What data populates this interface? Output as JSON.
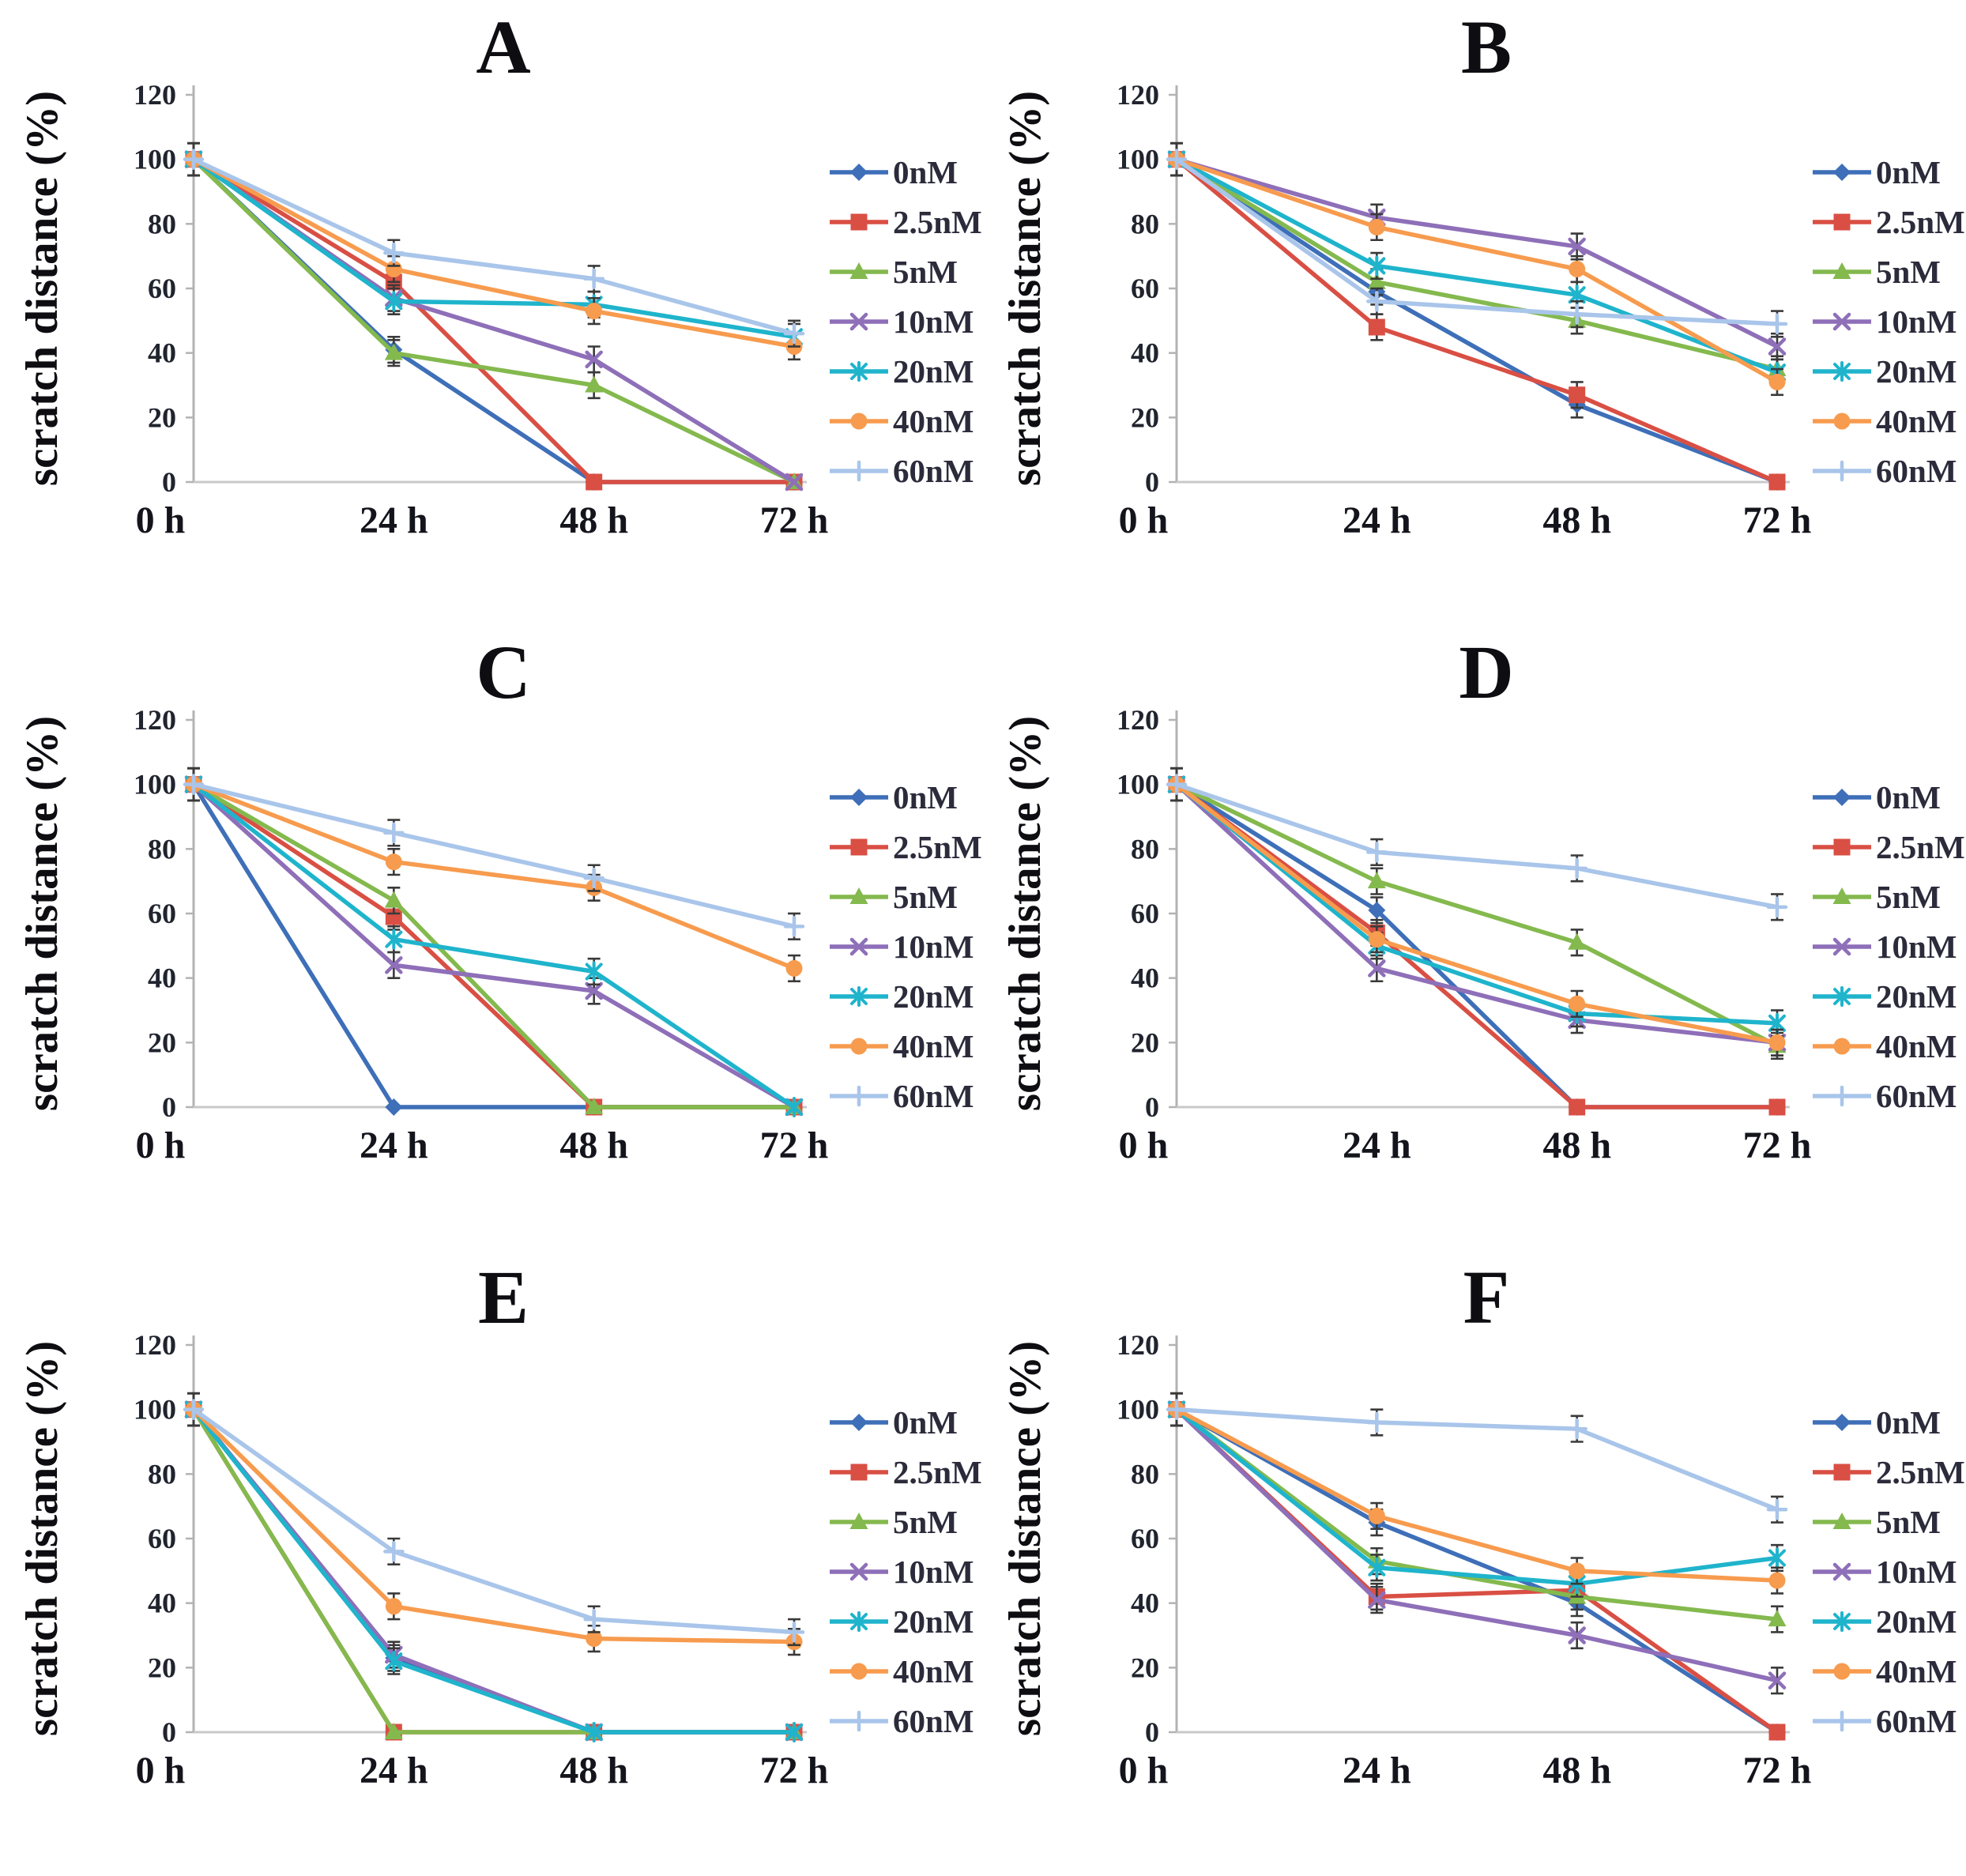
{
  "figure_title": "",
  "chart_data": {
    "type": "line",
    "ylabel": "scratch distance (%)",
    "categories": [
      "0 h",
      "24 h",
      "48 h",
      "72 h"
    ],
    "y_ticks": [
      0,
      20,
      40,
      60,
      80,
      100,
      120
    ],
    "ylim": [
      0,
      120
    ],
    "grid": false,
    "legend_position": "right",
    "error_bars": "small black whiskers, approx ±4%",
    "colors": {
      "axis": "#b3b3b3",
      "baseline": "#c9c9c9",
      "error_bar": "#3a3a3a"
    },
    "series_meta": [
      {
        "name": "0nM",
        "color": "#3E6FB8",
        "marker": "diamond"
      },
      {
        "name": "2.5nM",
        "color": "#D94F44",
        "marker": "square"
      },
      {
        "name": "5nM",
        "color": "#84B94E",
        "marker": "triangle"
      },
      {
        "name": "10nM",
        "color": "#8E6FB8",
        "marker": "x"
      },
      {
        "name": "20nM",
        "color": "#1FB4CC",
        "marker": "asterisk"
      },
      {
        "name": "40nM",
        "color": "#F79B4E",
        "marker": "circle"
      },
      {
        "name": "60nM",
        "color": "#A9C5EA",
        "marker": "plus"
      }
    ],
    "panels": [
      {
        "label": "A",
        "series": {
          "0nM": [
            100,
            41,
            0,
            0
          ],
          "2.5nM": [
            100,
            62,
            0,
            0
          ],
          "5nM": [
            100,
            40,
            30,
            0
          ],
          "10nM": [
            100,
            57,
            38,
            0
          ],
          "20nM": [
            100,
            56,
            55,
            45
          ],
          "40nM": [
            100,
            66,
            53,
            42
          ],
          "60nM": [
            100,
            71,
            63,
            46
          ]
        }
      },
      {
        "label": "B",
        "series": {
          "0nM": [
            100,
            59,
            24,
            0
          ],
          "2.5nM": [
            100,
            48,
            27,
            0
          ],
          "5nM": [
            100,
            62,
            50,
            35
          ],
          "10nM": [
            100,
            82,
            73,
            42
          ],
          "20nM": [
            100,
            67,
            58,
            34
          ],
          "40nM": [
            100,
            79,
            66,
            31
          ],
          "60nM": [
            100,
            56,
            52,
            49
          ]
        }
      },
      {
        "label": "C",
        "series": {
          "0nM": [
            100,
            0,
            0,
            0
          ],
          "2.5nM": [
            100,
            59,
            0,
            0
          ],
          "5nM": [
            100,
            64,
            0,
            0
          ],
          "10nM": [
            100,
            44,
            36,
            0
          ],
          "20nM": [
            100,
            52,
            42,
            0
          ],
          "40nM": [
            100,
            76,
            68,
            43
          ],
          "60nM": [
            100,
            85,
            71,
            56
          ]
        }
      },
      {
        "label": "D",
        "series": {
          "0nM": [
            100,
            61,
            0,
            0
          ],
          "2.5nM": [
            100,
            54,
            0,
            0
          ],
          "5nM": [
            100,
            70,
            51,
            19
          ],
          "10nM": [
            100,
            43,
            27,
            20
          ],
          "20nM": [
            100,
            50,
            29,
            26
          ],
          "40nM": [
            100,
            52,
            32,
            20
          ],
          "60nM": [
            100,
            79,
            74,
            62
          ]
        }
      },
      {
        "label": "E",
        "series": {
          "0nM": [
            100,
            23,
            0,
            0
          ],
          "2.5nM": [
            100,
            0,
            0,
            0
          ],
          "5nM": [
            100,
            0,
            0,
            0
          ],
          "10nM": [
            100,
            24,
            0,
            0
          ],
          "20nM": [
            100,
            22,
            0,
            0
          ],
          "40nM": [
            100,
            39,
            29,
            28
          ],
          "60nM": [
            100,
            56,
            35,
            31
          ]
        }
      },
      {
        "label": "F",
        "series": {
          "0nM": [
            100,
            65,
            40,
            0
          ],
          "2.5nM": [
            100,
            42,
            44,
            0
          ],
          "5nM": [
            100,
            53,
            42,
            35
          ],
          "10nM": [
            100,
            41,
            30,
            16
          ],
          "20nM": [
            100,
            51,
            46,
            54
          ],
          "40nM": [
            100,
            67,
            50,
            47
          ],
          "60nM": [
            100,
            96,
            94,
            69
          ]
        }
      }
    ]
  }
}
